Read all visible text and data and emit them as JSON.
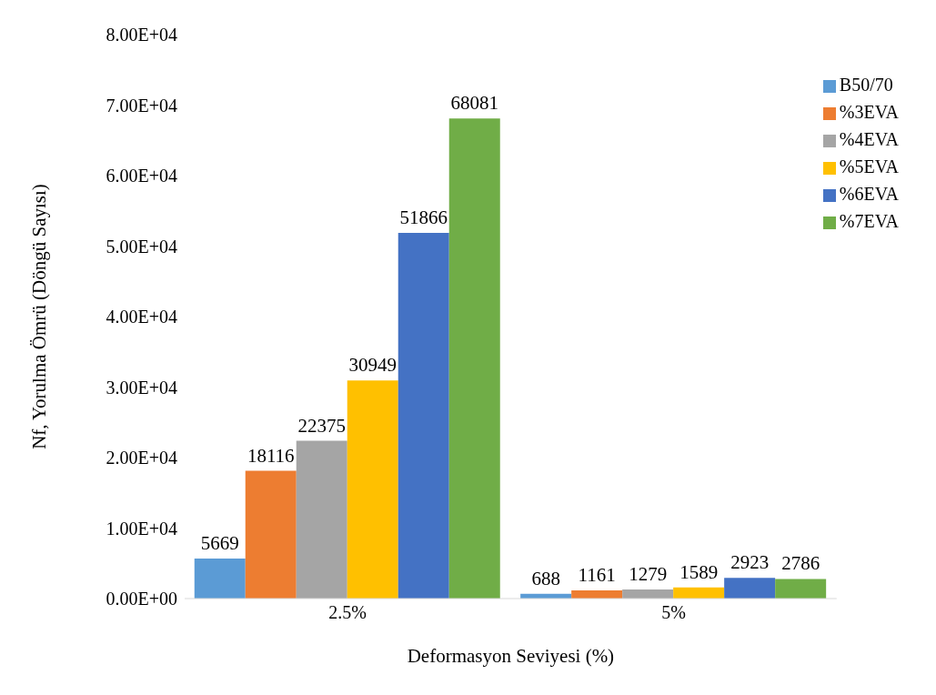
{
  "chart_data": {
    "type": "bar",
    "xlabel": "Deformasyon Seviyesi (%)",
    "ylabel": "Nf, Yorulma Ömrü (Döngü Sayısı)",
    "categories": [
      "2.5%",
      "5%"
    ],
    "series": [
      {
        "name": "B50/70",
        "color": "#5b9bd5",
        "values": [
          5669,
          688
        ]
      },
      {
        "name": "%3EVA",
        "color": "#ed7d31",
        "values": [
          18116,
          1161
        ]
      },
      {
        "name": "%4EVA",
        "color": "#a5a5a5",
        "values": [
          22375,
          1279
        ]
      },
      {
        "name": "%5EVA",
        "color": "#ffc000",
        "values": [
          30949,
          1589
        ]
      },
      {
        "name": "%6EVA",
        "color": "#4472c4",
        "values": [
          51866,
          2923
        ]
      },
      {
        "name": "%7EVA",
        "color": "#70ad47",
        "values": [
          68081,
          2786
        ]
      }
    ],
    "ylim": [
      0,
      80000
    ],
    "yticks": [
      {
        "value": 0,
        "label": "0.00E+00"
      },
      {
        "value": 10000,
        "label": "1.00E+04"
      },
      {
        "value": 20000,
        "label": "2.00E+04"
      },
      {
        "value": 30000,
        "label": "3.00E+04"
      },
      {
        "value": 40000,
        "label": "4.00E+04"
      },
      {
        "value": 50000,
        "label": "5.00E+04"
      },
      {
        "value": 60000,
        "label": "6.00E+04"
      },
      {
        "value": 70000,
        "label": "7.00E+04"
      },
      {
        "value": 80000,
        "label": "8.00E+04"
      }
    ],
    "grid": false,
    "legend": "top right",
    "data_labels": true
  }
}
